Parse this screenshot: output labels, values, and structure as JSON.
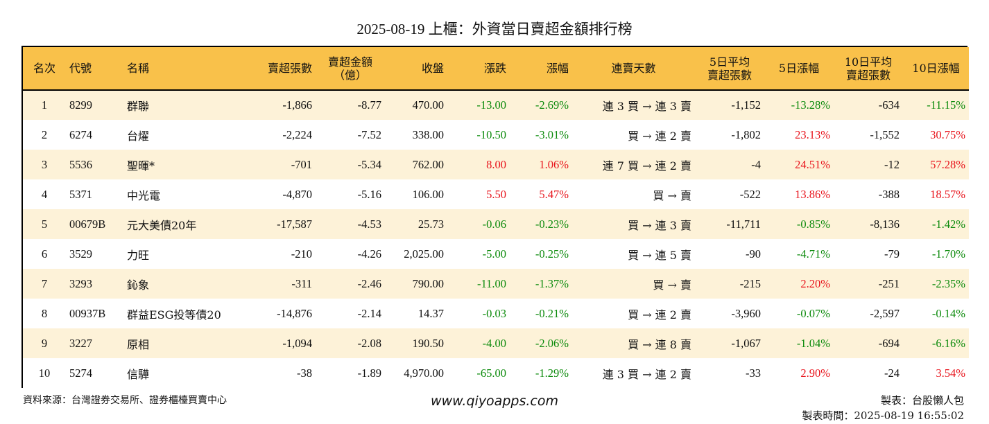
{
  "title": "2025-08-19 上櫃：外資當日賣超金額排行榜",
  "colors": {
    "header_bg": "#f9c14a",
    "odd_row_bg": "#fdf2d8",
    "up": "#e8131b",
    "down": "#0b8a0b"
  },
  "columns": [
    "名次",
    "代號",
    "名稱",
    "賣超張數",
    "賣超金額\n（億）",
    "收盤",
    "漲跌",
    "漲幅",
    "連賣天數",
    "5日平均\n賣超張數",
    "5日漲幅",
    "10日平均\n賣超張數",
    "10日漲幅"
  ],
  "rows": [
    {
      "rank": "1",
      "code": "8299",
      "name": "群聯",
      "sell_qty": "-1,866",
      "sell_amt": "-8.77",
      "close": "470.00",
      "chg": "-13.00",
      "chg_dir": "down",
      "pct": "-2.69%",
      "pct_dir": "down",
      "streak": "連 3 買 → 連 3 賣",
      "avg5": "-1,152",
      "pct5": "-13.28%",
      "pct5_dir": "down",
      "avg10": "-634",
      "pct10": "-11.15%",
      "pct10_dir": "down"
    },
    {
      "rank": "2",
      "code": "6274",
      "name": "台燿",
      "sell_qty": "-2,224",
      "sell_amt": "-7.52",
      "close": "338.00",
      "chg": "-10.50",
      "chg_dir": "down",
      "pct": "-3.01%",
      "pct_dir": "down",
      "streak": "買 → 連 2 賣",
      "avg5": "-1,802",
      "pct5": "23.13%",
      "pct5_dir": "up",
      "avg10": "-1,552",
      "pct10": "30.75%",
      "pct10_dir": "up"
    },
    {
      "rank": "3",
      "code": "5536",
      "name": "聖暉*",
      "sell_qty": "-701",
      "sell_amt": "-5.34",
      "close": "762.00",
      "chg": "8.00",
      "chg_dir": "up",
      "pct": "1.06%",
      "pct_dir": "up",
      "streak": "連 7 買 → 連 2 賣",
      "avg5": "-4",
      "pct5": "24.51%",
      "pct5_dir": "up",
      "avg10": "-12",
      "pct10": "57.28%",
      "pct10_dir": "up"
    },
    {
      "rank": "4",
      "code": "5371",
      "name": "中光電",
      "sell_qty": "-4,870",
      "sell_amt": "-5.16",
      "close": "106.00",
      "chg": "5.50",
      "chg_dir": "up",
      "pct": "5.47%",
      "pct_dir": "up",
      "streak": "買 → 賣",
      "avg5": "-522",
      "pct5": "13.86%",
      "pct5_dir": "up",
      "avg10": "-388",
      "pct10": "18.57%",
      "pct10_dir": "up"
    },
    {
      "rank": "5",
      "code": "00679B",
      "name": "元大美債20年",
      "sell_qty": "-17,587",
      "sell_amt": "-4.53",
      "close": "25.73",
      "chg": "-0.06",
      "chg_dir": "down",
      "pct": "-0.23%",
      "pct_dir": "down",
      "streak": "買 → 連 3 賣",
      "avg5": "-11,711",
      "pct5": "-0.85%",
      "pct5_dir": "down",
      "avg10": "-8,136",
      "pct10": "-1.42%",
      "pct10_dir": "down"
    },
    {
      "rank": "6",
      "code": "3529",
      "name": "力旺",
      "sell_qty": "-210",
      "sell_amt": "-4.26",
      "close": "2,025.00",
      "chg": "-5.00",
      "chg_dir": "down",
      "pct": "-0.25%",
      "pct_dir": "down",
      "streak": "買 → 連 5 賣",
      "avg5": "-90",
      "pct5": "-4.71%",
      "pct5_dir": "down",
      "avg10": "-79",
      "pct10": "-1.70%",
      "pct10_dir": "down"
    },
    {
      "rank": "7",
      "code": "3293",
      "name": "鈊象",
      "sell_qty": "-311",
      "sell_amt": "-2.46",
      "close": "790.00",
      "chg": "-11.00",
      "chg_dir": "down",
      "pct": "-1.37%",
      "pct_dir": "down",
      "streak": "買 → 賣",
      "avg5": "-215",
      "pct5": "2.20%",
      "pct5_dir": "up",
      "avg10": "-251",
      "pct10": "-2.35%",
      "pct10_dir": "down"
    },
    {
      "rank": "8",
      "code": "00937B",
      "name": "群益ESG投等債20",
      "sell_qty": "-14,876",
      "sell_amt": "-2.14",
      "close": "14.37",
      "chg": "-0.03",
      "chg_dir": "down",
      "pct": "-0.21%",
      "pct_dir": "down",
      "streak": "買 → 連 2 賣",
      "avg5": "-3,960",
      "pct5": "-0.07%",
      "pct5_dir": "down",
      "avg10": "-2,597",
      "pct10": "-0.14%",
      "pct10_dir": "down"
    },
    {
      "rank": "9",
      "code": "3227",
      "name": "原相",
      "sell_qty": "-1,094",
      "sell_amt": "-2.08",
      "close": "190.50",
      "chg": "-4.00",
      "chg_dir": "down",
      "pct": "-2.06%",
      "pct_dir": "down",
      "streak": "買 → 連 8 賣",
      "avg5": "-1,067",
      "pct5": "-1.04%",
      "pct5_dir": "down",
      "avg10": "-694",
      "pct10": "-6.16%",
      "pct10_dir": "down"
    },
    {
      "rank": "10",
      "code": "5274",
      "name": "信驊",
      "sell_qty": "-38",
      "sell_amt": "-1.89",
      "close": "4,970.00",
      "chg": "-65.00",
      "chg_dir": "down",
      "pct": "-1.29%",
      "pct_dir": "down",
      "streak": "連 3 買 → 連 2 賣",
      "avg5": "-33",
      "pct5": "2.90%",
      "pct5_dir": "up",
      "avg10": "-24",
      "pct10": "3.54%",
      "pct10_dir": "up"
    }
  ],
  "footer": {
    "source": "資料來源：台灣證券交易所、證券櫃檯買賣中心",
    "site": "www.qiyoapps.com",
    "maker": "製表：台股懶人包",
    "made_time": "製表時間：2025-08-19 16:55:02"
  }
}
